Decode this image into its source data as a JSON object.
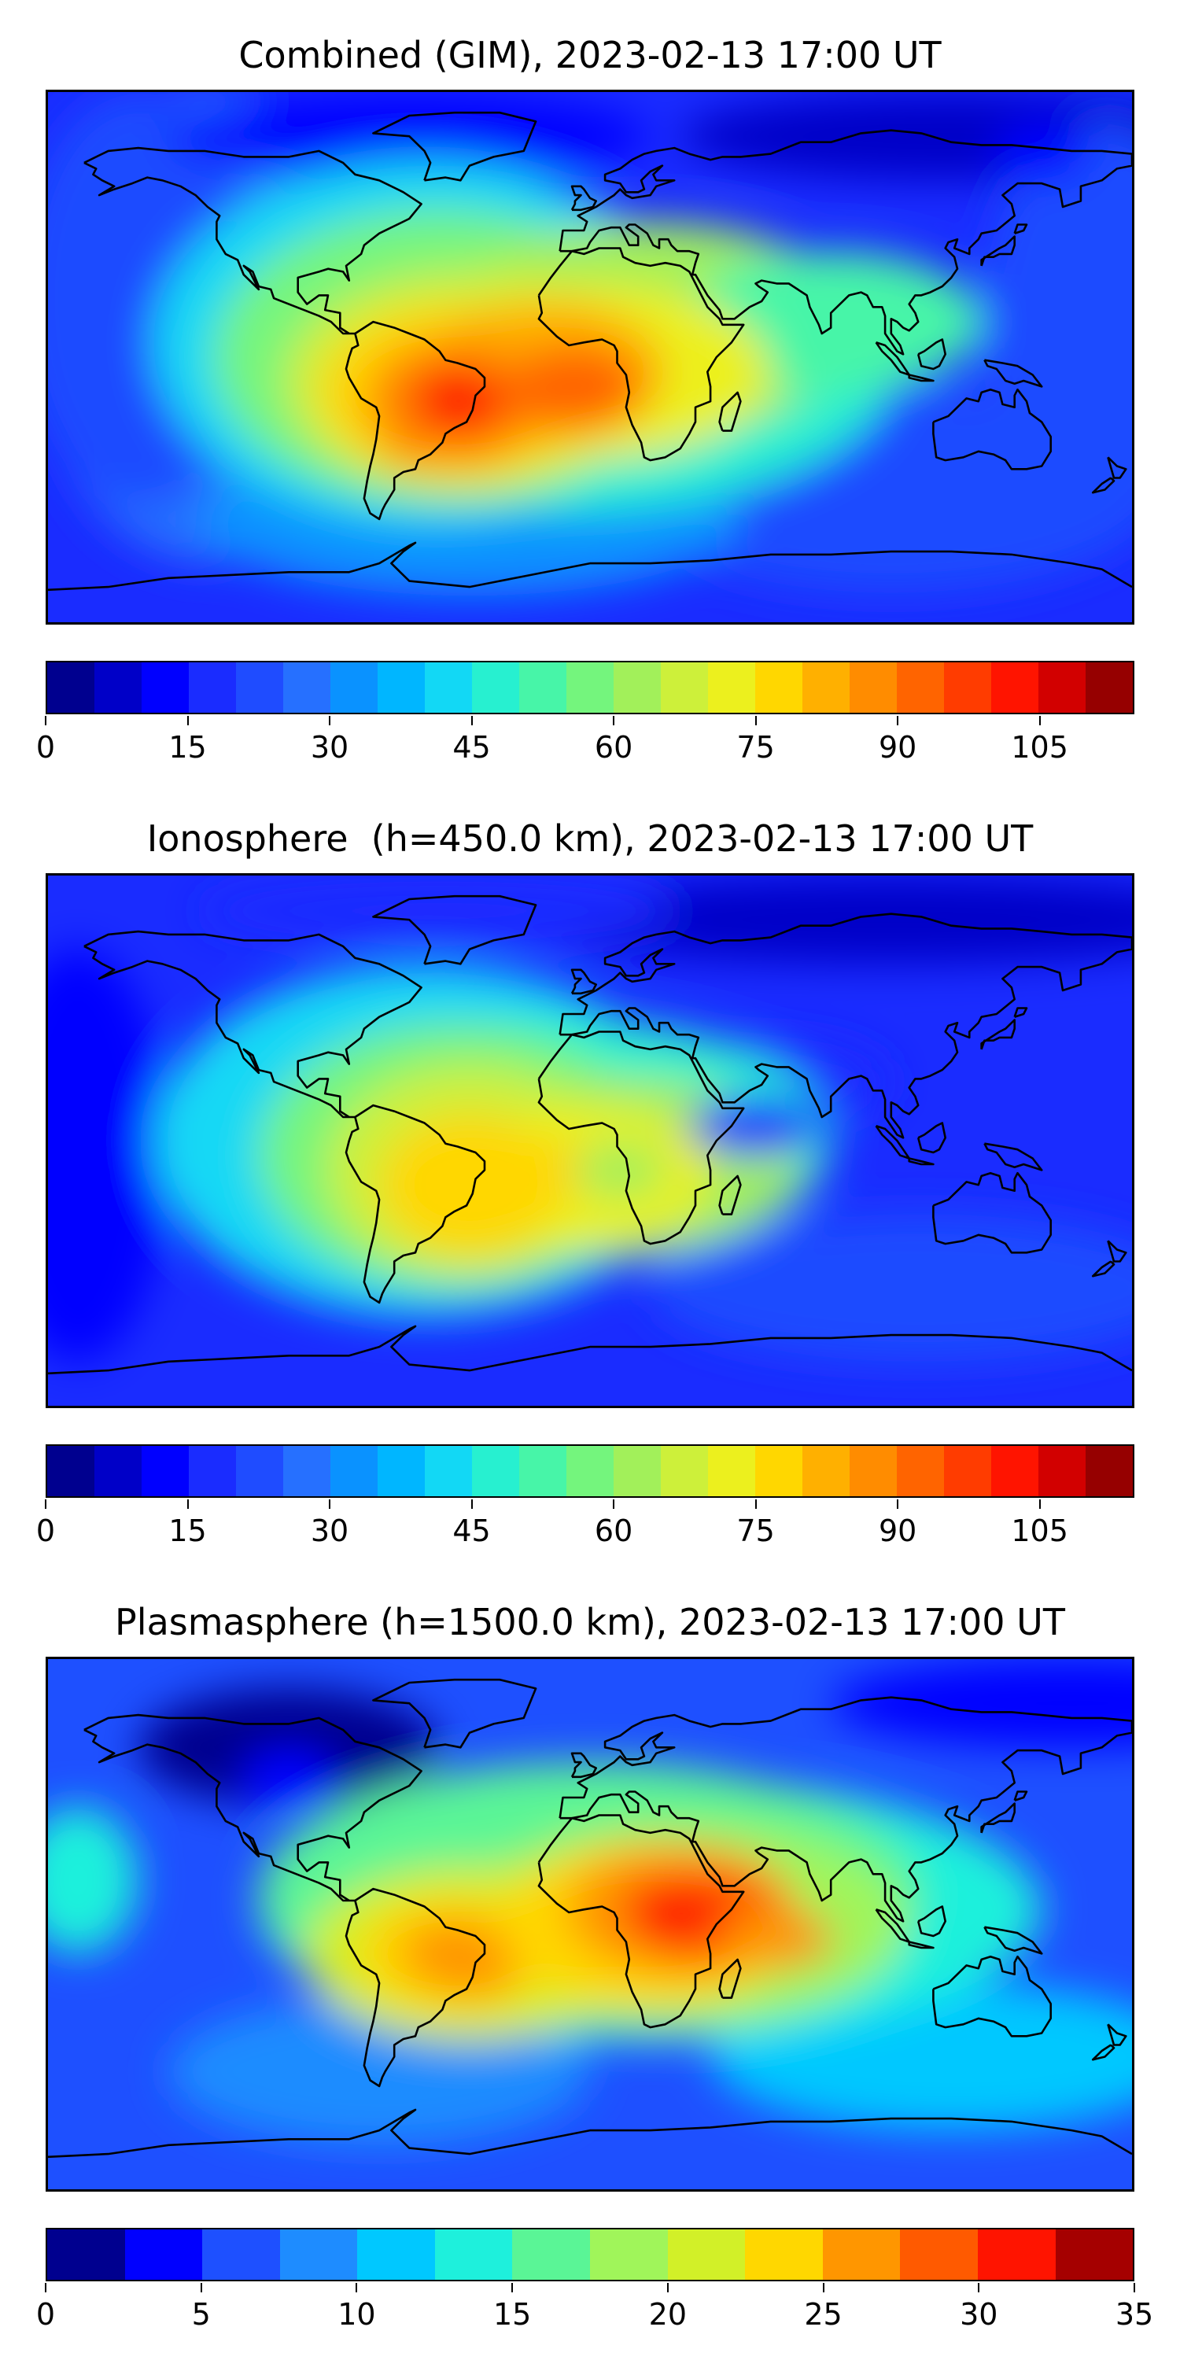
{
  "chart_data": [
    {
      "type": "heatmap",
      "title": "Combined (GIM), 2023-02-13 17:00 UT",
      "colorbar": {
        "levels": [
          0,
          5,
          10,
          15,
          20,
          25,
          30,
          35,
          40,
          45,
          50,
          55,
          60,
          65,
          70,
          75,
          80,
          85,
          90,
          95,
          100,
          105,
          110,
          115
        ],
        "tick_values": [
          0,
          15,
          30,
          45,
          60,
          75,
          90,
          105
        ],
        "tick_labels": [
          "0",
          "15",
          "30",
          "45",
          "60",
          "75",
          "90",
          "105"
        ],
        "range": [
          0,
          115
        ]
      },
      "colors": [
        "#00008f",
        "#0000c8",
        "#0000ff",
        "#1a2cff",
        "#1f4cff",
        "#2670ff",
        "#0a92ff",
        "#00b6ff",
        "#12d8f5",
        "#27f0d0",
        "#47f5a8",
        "#74f57d",
        "#a2f05a",
        "#cdf03a",
        "#ecf01e",
        "#ffd700",
        "#ffb000",
        "#ff8c00",
        "#ff6400",
        "#ff3c00",
        "#ff1400",
        "#d20000",
        "#960000"
      ],
      "features": [
        {
          "name": "South America maximum",
          "lon": -45,
          "lat": -15,
          "value": 100
        },
        {
          "name": "Africa / Atlantic crest",
          "lon": 0,
          "lat": -10,
          "value": 90
        },
        {
          "name": "Polar and night-side minimum",
          "lon": 150,
          "lat": 70,
          "value": 10
        }
      ]
    },
    {
      "type": "heatmap",
      "title": "Ionosphere  (h=450.0 km), 2023-02-13 17:00 UT",
      "colorbar": {
        "levels": [
          0,
          5,
          10,
          15,
          20,
          25,
          30,
          35,
          40,
          45,
          50,
          55,
          60,
          65,
          70,
          75,
          80,
          85,
          90,
          95,
          100,
          105,
          110,
          115
        ],
        "tick_values": [
          0,
          15,
          30,
          45,
          60,
          75,
          90,
          105
        ],
        "tick_labels": [
          "0",
          "15",
          "30",
          "45",
          "60",
          "75",
          "90",
          "105"
        ],
        "range": [
          0,
          115
        ]
      },
      "colors": [
        "#00008f",
        "#0000c8",
        "#0000ff",
        "#1a2cff",
        "#1f4cff",
        "#2670ff",
        "#0a92ff",
        "#00b6ff",
        "#12d8f5",
        "#27f0d0",
        "#47f5a8",
        "#74f57d",
        "#a2f05a",
        "#cdf03a",
        "#ecf01e",
        "#ffd700",
        "#ffb000",
        "#ff8c00",
        "#ff6400",
        "#ff3c00",
        "#ff1400",
        "#d20000",
        "#960000"
      ],
      "features": [
        {
          "name": "South America maximum",
          "lon": -40,
          "lat": -15,
          "value": 75
        },
        {
          "name": "Equatorial belt",
          "lon": 10,
          "lat": -10,
          "value": 65
        },
        {
          "name": "Arabian / Indian Ocean minimum",
          "lon": 55,
          "lat": 5,
          "value": 15
        }
      ]
    },
    {
      "type": "heatmap",
      "title": "Plasmasphere (h=1500.0 km), 2023-02-13 17:00 UT",
      "colorbar": {
        "levels": [
          0,
          2.5,
          5,
          7.5,
          10,
          12.5,
          15,
          17.5,
          20,
          22.5,
          25,
          27.5,
          30,
          32.5,
          35
        ],
        "tick_values": [
          0,
          5,
          10,
          15,
          20,
          25,
          30,
          35
        ],
        "tick_labels": [
          "0",
          "5",
          "10",
          "15",
          "20",
          "25",
          "30",
          "35"
        ],
        "range": [
          0,
          35
        ]
      },
      "colors": [
        "#00008f",
        "#0000ff",
        "#1e50ff",
        "#1e8cff",
        "#00c8ff",
        "#1ef0dc",
        "#5af596",
        "#a0f55a",
        "#d2f028",
        "#ffd700",
        "#ff9600",
        "#ff5a00",
        "#ff1400",
        "#a50000"
      ],
      "features": [
        {
          "name": "East Africa maximum",
          "lon": 30,
          "lat": 5,
          "value": 31
        },
        {
          "name": "Indian Ocean lobe",
          "lon": 60,
          "lat": -5,
          "value": 27
        },
        {
          "name": "South America lobe",
          "lon": -40,
          "lat": -15,
          "value": 25
        },
        {
          "name": "North America minimum",
          "lon": -100,
          "lat": 50,
          "value": 3
        }
      ]
    }
  ]
}
